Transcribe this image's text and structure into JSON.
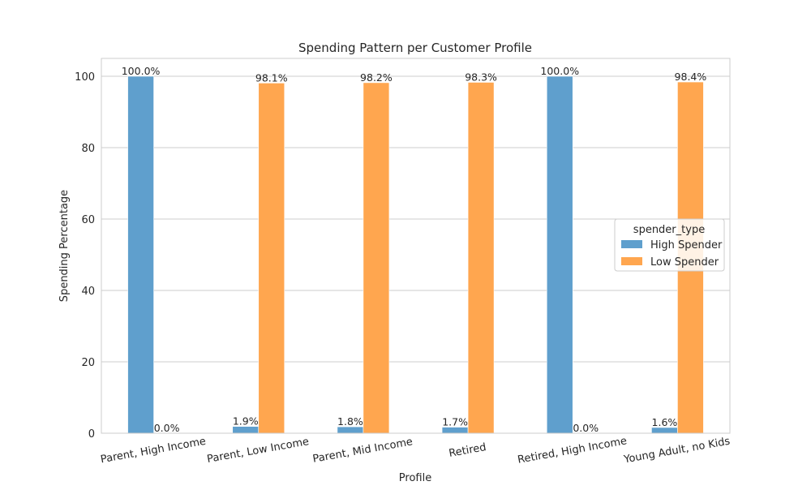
{
  "chart_data": {
    "type": "bar",
    "title": "Spending Pattern per Customer Profile",
    "xlabel": "Profile",
    "ylabel": "Spending Percentage",
    "ylim": [
      0,
      105
    ],
    "yticks": [
      0,
      20,
      40,
      60,
      80,
      100
    ],
    "grid": true,
    "categories": [
      "Parent, High Income",
      "Parent, Low Income",
      "Parent, Mid Income",
      "Retired",
      "Retired, High Income",
      "Young Adult, no Kids"
    ],
    "series": [
      {
        "name": "High Spender",
        "color": "#5f9fcd",
        "values": [
          100.0,
          1.9,
          1.8,
          1.7,
          100.0,
          1.6
        ],
        "labels": [
          "100.0%",
          "1.9%",
          "1.8%",
          "1.7%",
          "100.0%",
          "1.6%"
        ]
      },
      {
        "name": "Low Spender",
        "color": "#ffa64f",
        "values": [
          0.0,
          98.1,
          98.2,
          98.3,
          0.0,
          98.4
        ],
        "labels": [
          "0.0%",
          "98.1%",
          "98.2%",
          "98.3%",
          "0.0%",
          "98.4%"
        ]
      }
    ],
    "legend": {
      "title": "spender_type",
      "placement": "center-right"
    }
  }
}
